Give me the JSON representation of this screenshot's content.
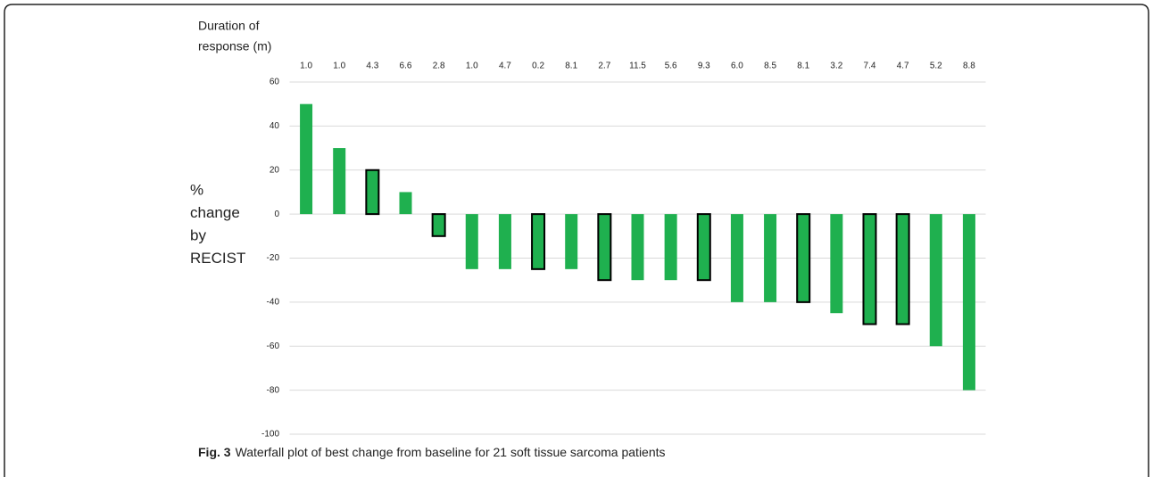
{
  "chart_data": {
    "type": "bar",
    "category_axis_title": [
      "Duration of",
      "response (m)"
    ],
    "ylabel": [
      "%",
      "change",
      "by",
      "RECIST"
    ],
    "categories": [
      "1.0",
      "1.0",
      "4.3",
      "6.6",
      "2.8",
      "1.0",
      "4.7",
      "0.2",
      "8.1",
      "2.7",
      "11.5",
      "5.6",
      "9.3",
      "6.0",
      "8.5",
      "8.1",
      "3.2",
      "7.4",
      "4.7",
      "5.2",
      "8.8"
    ],
    "values": [
      50,
      30,
      20,
      10,
      -10,
      -25,
      -25,
      -25,
      -25,
      -30,
      -30,
      -30,
      -30,
      -40,
      -40,
      -40,
      -45,
      -50,
      -50,
      -60,
      -80
    ],
    "outlined": [
      false,
      false,
      true,
      false,
      true,
      false,
      false,
      true,
      false,
      true,
      false,
      false,
      true,
      false,
      false,
      true,
      false,
      true,
      true,
      false,
      false
    ],
    "color": "#1fb04f",
    "outline_color": "#000000",
    "ylim": [
      -100,
      60
    ],
    "yticks": [
      -100,
      -80,
      -60,
      -40,
      -20,
      0,
      20,
      40,
      60
    ],
    "grid": true
  },
  "caption": {
    "label": "Fig. 3",
    "text": "Waterfall plot of best change from baseline for 21 soft tissue sarcoma patients"
  }
}
